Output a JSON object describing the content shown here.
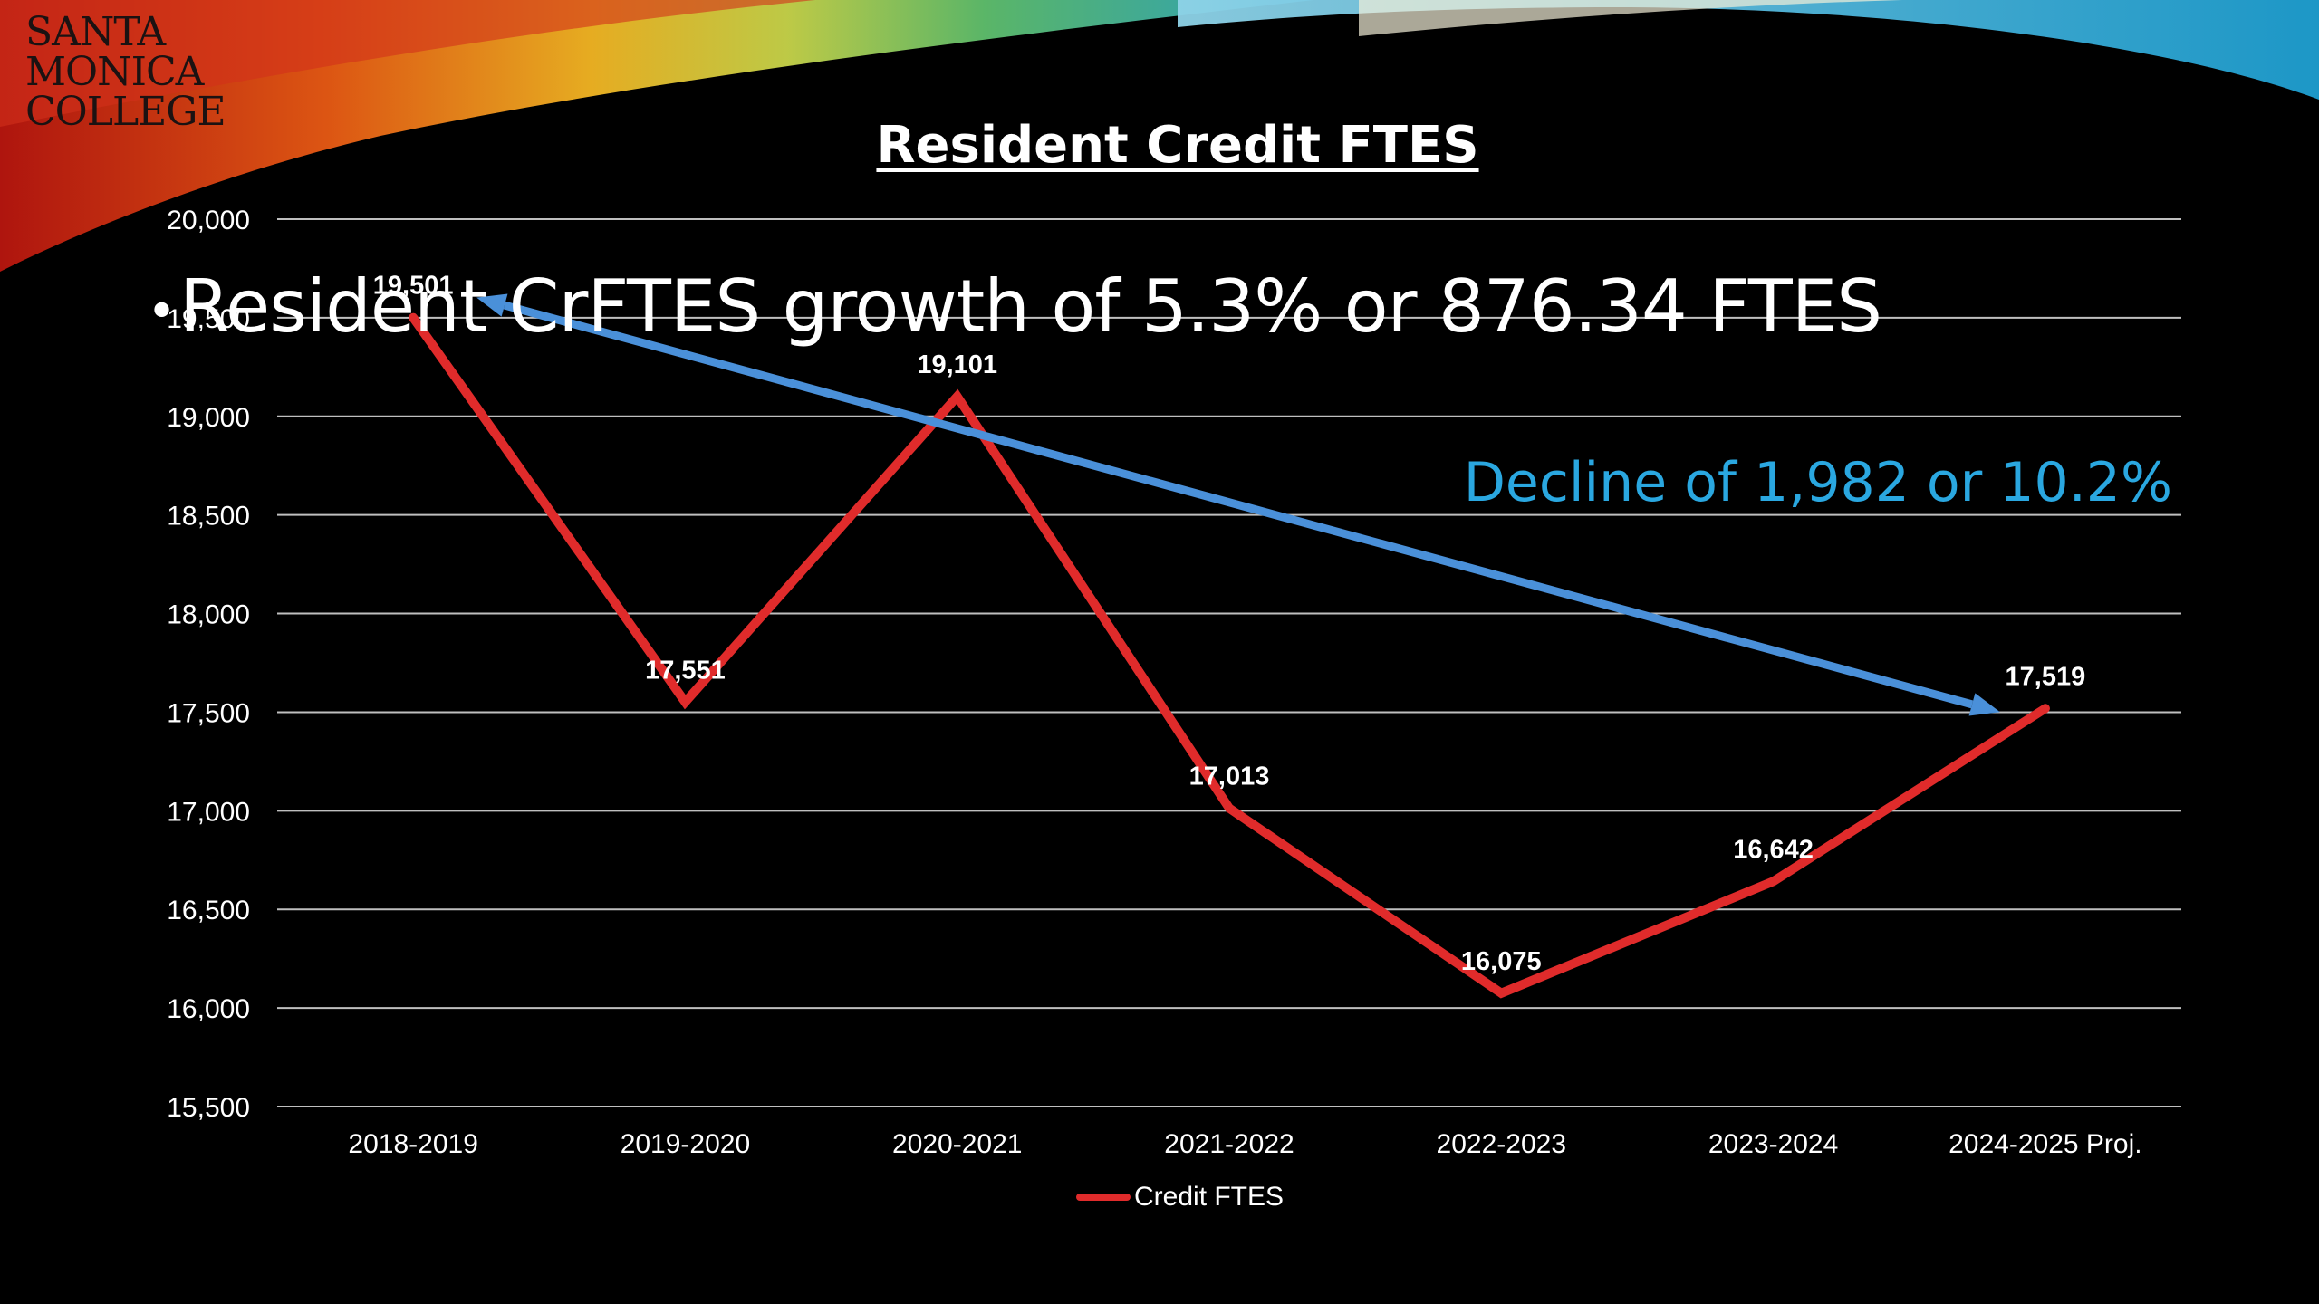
{
  "logo": {
    "lines": [
      "SANTA",
      "MONICA",
      "COLLEGE"
    ]
  },
  "bullet_text": "Resident CrFTES growth of 5.3% or 876.34 FTES",
  "decline_text": "Decline of 1,982 or 10.2%",
  "colors": {
    "series": "#e02b2b",
    "trend": "#4a90d9",
    "annotation": "#2aa7e0",
    "grid": "#bfbfbf"
  },
  "chart_data": {
    "type": "line",
    "title": "Resident Credit FTES",
    "categories": [
      "2018-2019",
      "2019-2020",
      "2020-2021",
      "2021-2022",
      "2022-2023",
      "2023-2024",
      "2024-2025 Proj."
    ],
    "series": [
      {
        "name": "Credit FTES",
        "values": [
          19501,
          17551,
          19101,
          17013,
          16075,
          16642,
          17519
        ],
        "labels": [
          "19,501",
          "17,551",
          "19,101",
          "17,013",
          "16,075",
          "16,642",
          "17,519"
        ]
      }
    ],
    "ylim": [
      15500,
      20000
    ],
    "yticks": [
      15500,
      16000,
      16500,
      17000,
      17500,
      18000,
      18500,
      19000,
      19500,
      20000
    ],
    "ytick_labels": [
      "15,500",
      "16,000",
      "16,500",
      "17,000",
      "17,500",
      "18,000",
      "18,500",
      "19,000",
      "19,500",
      "20,000"
    ],
    "grid": true,
    "legend": "bottom",
    "trend_arrow": {
      "from": [
        0,
        19501
      ],
      "to": [
        6,
        17519
      ]
    }
  }
}
